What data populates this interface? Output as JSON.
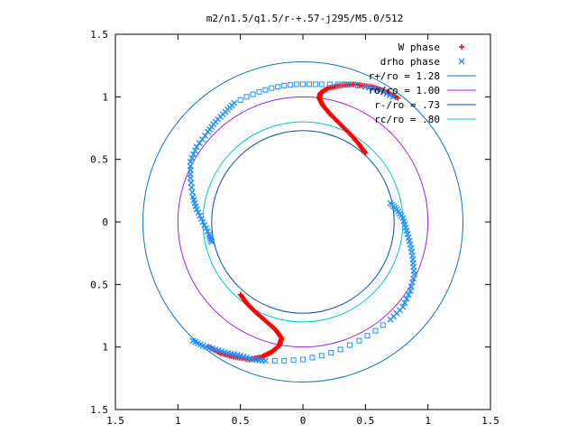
{
  "chart_data": {
    "type": "scatter",
    "title": "m2/n1.5/q1.5/r-+.57-j295/M5.0/512",
    "xlabel": "",
    "ylabel": "",
    "xlim": [
      -1.5,
      1.5
    ],
    "ylim": [
      -1.5,
      1.5
    ],
    "x_ticks": [
      -1.5,
      -1,
      -0.5,
      0,
      0.5,
      1,
      1.5
    ],
    "y_ticks": [
      1.5,
      1,
      0.5,
      0,
      -0.5,
      -1,
      -1.5
    ],
    "x_tick_labels": [
      "1.5",
      "1",
      "0.5",
      "0",
      "0.5",
      "1",
      "1.5"
    ],
    "y_tick_labels": [
      "1.5",
      "1",
      "0.5",
      "0",
      "0.5",
      "1",
      "1.5"
    ],
    "grid": false,
    "legend_position": "top-right",
    "colors": {
      "w_phase": "#ff0000",
      "drho_phase": "#1e90ff",
      "r_plus": "#0a74c4",
      "r_o": "#a020f0",
      "r_minus": "#0a50a0",
      "r_c": "#00c8c8",
      "axes": "#000000"
    },
    "series": [
      {
        "name": "W phase",
        "marker": "plus",
        "arms": [
          [
            [
              0.5,
              0.55
            ],
            [
              0.45,
              0.62
            ],
            [
              0.38,
              0.7
            ],
            [
              0.3,
              0.78
            ],
            [
              0.22,
              0.86
            ],
            [
              0.16,
              0.93
            ],
            [
              0.13,
              0.99
            ],
            [
              0.14,
              1.03
            ],
            [
              0.2,
              1.07
            ],
            [
              0.3,
              1.09
            ],
            [
              0.42,
              1.1
            ],
            [
              0.55,
              1.08
            ],
            [
              0.65,
              1.05
            ],
            [
              0.76,
              0.99
            ]
          ],
          [
            [
              -0.5,
              -0.58
            ],
            [
              -0.45,
              -0.65
            ],
            [
              -0.38,
              -0.72
            ],
            [
              -0.3,
              -0.79
            ],
            [
              -0.22,
              -0.86
            ],
            [
              -0.17,
              -0.93
            ],
            [
              -0.19,
              -0.99
            ],
            [
              -0.25,
              -1.04
            ],
            [
              -0.33,
              -1.08
            ],
            [
              -0.43,
              -1.1
            ],
            [
              -0.55,
              -1.08
            ],
            [
              -0.66,
              -1.05
            ],
            [
              -0.75,
              -1.0
            ]
          ]
        ]
      },
      {
        "name": "drho phase",
        "marker": "x-and-square",
        "arms": [
          [
            [
              0.72,
              1.0
            ],
            [
              0.62,
              1.05
            ],
            [
              0.5,
              1.08
            ],
            [
              0.38,
              1.1
            ],
            [
              0.28,
              1.1
            ],
            [
              0.15,
              1.1
            ],
            [
              0.05,
              1.1
            ],
            [
              -0.05,
              1.1
            ],
            [
              -0.15,
              1.09
            ],
            [
              -0.25,
              1.07
            ],
            [
              -0.35,
              1.04
            ],
            [
              -0.45,
              1.0
            ],
            [
              -0.55,
              0.95
            ],
            [
              -0.62,
              0.88
            ],
            [
              -0.7,
              0.8
            ],
            [
              -0.76,
              0.72
            ],
            [
              -0.85,
              0.6
            ],
            [
              -0.9,
              0.48
            ],
            [
              -0.9,
              0.35
            ],
            [
              -0.88,
              0.2
            ],
            [
              -0.85,
              0.1
            ],
            [
              -0.8,
              0.0
            ],
            [
              -0.75,
              -0.1
            ],
            [
              -0.73,
              -0.16
            ]
          ],
          [
            [
              -0.88,
              -0.95
            ],
            [
              -0.8,
              -0.99
            ],
            [
              -0.7,
              -1.02
            ],
            [
              -0.6,
              -1.05
            ],
            [
              -0.5,
              -1.07
            ],
            [
              -0.4,
              -1.1
            ],
            [
              -0.3,
              -1.11
            ],
            [
              -0.15,
              -1.11
            ],
            [
              0.0,
              -1.1
            ],
            [
              0.15,
              -1.07
            ],
            [
              0.3,
              -1.02
            ],
            [
              0.45,
              -0.95
            ],
            [
              0.58,
              -0.87
            ],
            [
              0.7,
              -0.78
            ],
            [
              0.8,
              -0.68
            ],
            [
              0.86,
              -0.55
            ],
            [
              0.89,
              -0.42
            ],
            [
              0.88,
              -0.3
            ],
            [
              0.86,
              -0.18
            ],
            [
              0.83,
              -0.07
            ],
            [
              0.8,
              0.03
            ],
            [
              0.75,
              0.1
            ],
            [
              0.7,
              0.15
            ]
          ]
        ]
      },
      {
        "name": "r+/ro = 1.28",
        "type": "circle",
        "radius": 1.28
      },
      {
        "name": "ro/ro = 1.00",
        "type": "circle",
        "radius": 1.0
      },
      {
        "name": "r-/ro = .73",
        "type": "circle",
        "radius": 0.73
      },
      {
        "name": "rc/ro = .80",
        "type": "circle",
        "radius": 0.8
      }
    ]
  }
}
